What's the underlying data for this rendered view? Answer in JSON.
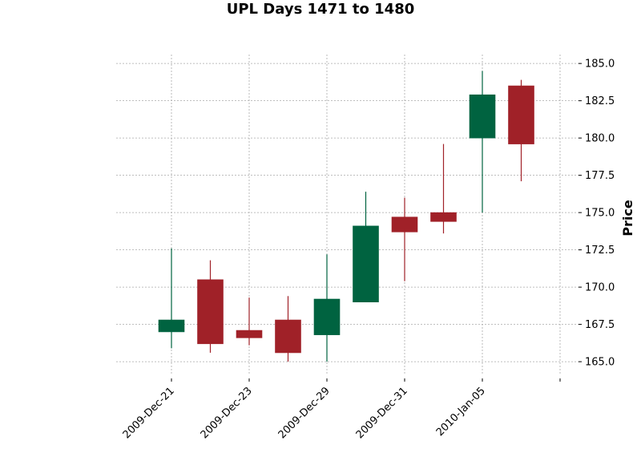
{
  "chart_data": {
    "type": "candlestick",
    "title": "UPL Days 1471 to 1480",
    "xlabel": "",
    "ylabel": "Price",
    "ylim": [
      164.2,
      185.6
    ],
    "yticks": [
      165.0,
      167.5,
      170.0,
      172.5,
      175.0,
      177.5,
      180.0,
      182.5,
      185.0
    ],
    "ytick_labels": [
      "165.0",
      "167.5",
      "170.0",
      "172.5",
      "175.0",
      "177.5",
      "180.0",
      "182.5",
      "185.0"
    ],
    "xtick_indices": [
      0,
      2,
      4,
      6,
      8,
      10
    ],
    "xtick_labels": [
      "2009-Dec-21",
      "2009-Dec-23",
      "2009-Dec-29",
      "2009-Dec-31",
      "2010-Jan-05",
      ""
    ],
    "grid": true,
    "y_axis_side": "right",
    "up_color": "#006340",
    "down_color": "#a02128",
    "candles": [
      {
        "open": 167.0,
        "high": 172.6,
        "low": 165.9,
        "close": 167.8
      },
      {
        "open": 170.5,
        "high": 171.8,
        "low": 165.6,
        "close": 166.2
      },
      {
        "open": 167.1,
        "high": 169.3,
        "low": 166.1,
        "close": 166.6
      },
      {
        "open": 167.8,
        "high": 169.4,
        "low": 165.0,
        "close": 165.6
      },
      {
        "open": 166.8,
        "high": 172.2,
        "low": 165.0,
        "close": 169.2
      },
      {
        "open": 169.0,
        "high": 176.4,
        "low": 169.0,
        "close": 174.1
      },
      {
        "open": 174.7,
        "high": 176.0,
        "low": 170.4,
        "close": 173.7
      },
      {
        "open": 175.0,
        "high": 179.6,
        "low": 173.6,
        "close": 174.4
      },
      {
        "open": 180.0,
        "high": 184.5,
        "low": 175.0,
        "close": 182.9
      },
      {
        "open": 183.5,
        "high": 183.9,
        "low": 177.1,
        "close": 179.6
      }
    ]
  }
}
